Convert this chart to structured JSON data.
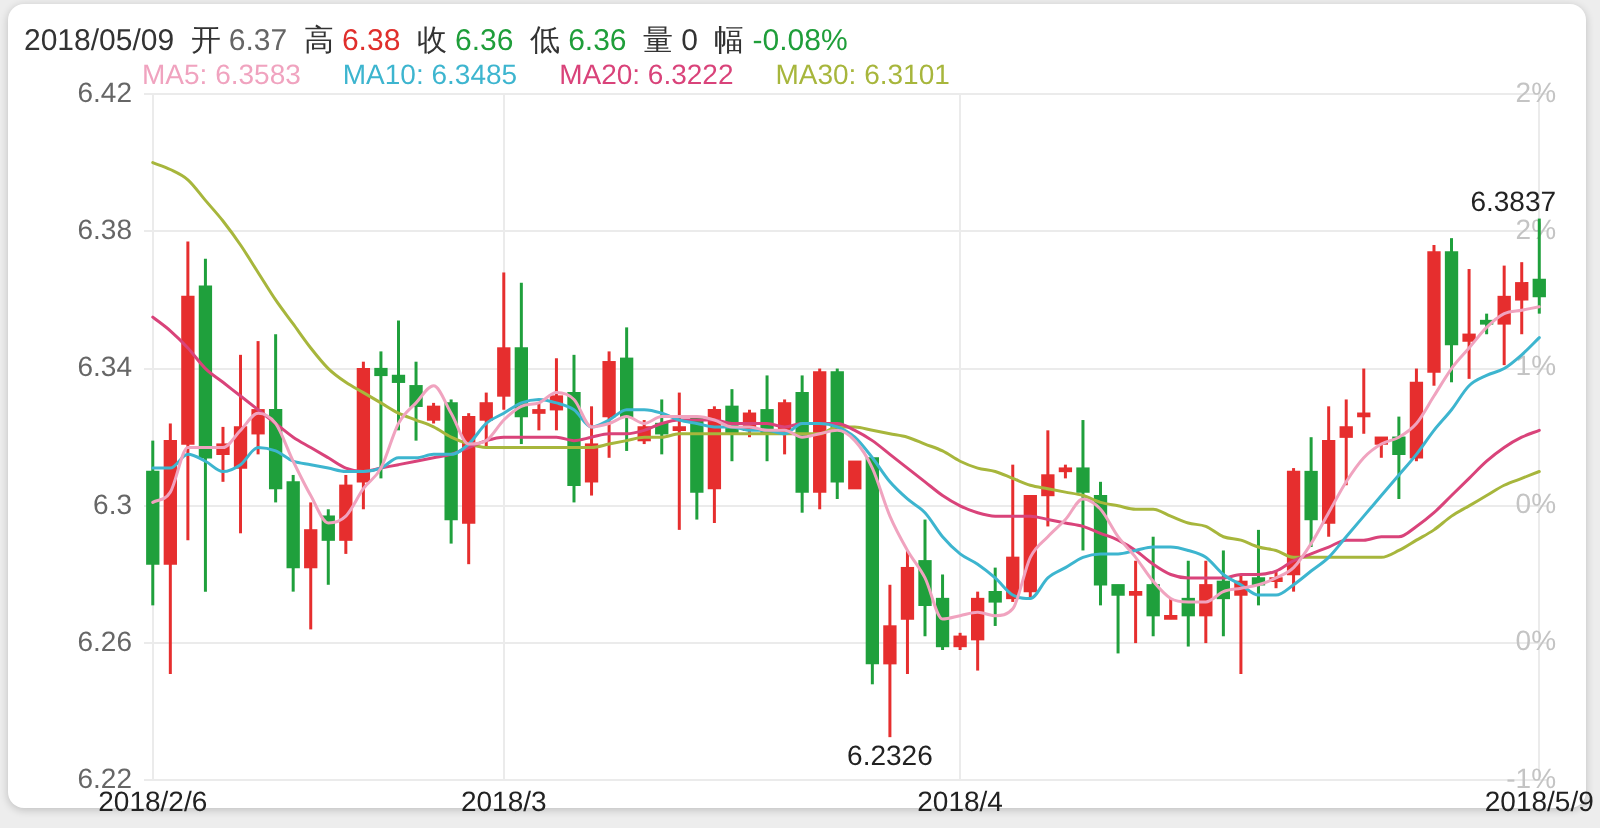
{
  "chart_data": {
    "type": "candlestick",
    "title": "2018/05/09 开 6.37 高 6.38 收 6.36 低 6.36 量 0 幅 -0.08%",
    "categories": [
      "2018/2/6",
      null,
      null,
      null,
      null,
      null,
      null,
      null,
      null,
      null,
      null,
      null,
      null,
      null,
      null,
      null,
      null,
      null,
      null,
      null,
      "2018/3",
      null,
      null,
      null,
      null,
      null,
      null,
      null,
      null,
      null,
      null,
      null,
      null,
      null,
      null,
      null,
      null,
      null,
      null,
      null,
      null,
      null,
      null,
      null,
      null,
      null,
      "2018/4",
      null,
      null,
      null,
      null,
      null,
      null,
      null,
      null,
      null,
      null,
      null,
      null,
      null,
      null,
      null,
      null,
      null,
      null,
      null,
      null,
      null,
      null,
      null,
      null,
      null,
      null,
      null,
      null,
      null,
      null,
      null,
      null,
      "2018/5/9"
    ],
    "ohlc": [
      [
        6.31,
        6.319,
        6.271,
        6.283
      ],
      [
        6.283,
        6.324,
        6.251,
        6.319
      ],
      [
        6.318,
        6.377,
        6.29,
        6.361
      ],
      [
        6.364,
        6.372,
        6.275,
        6.314
      ],
      [
        6.315,
        6.323,
        6.307,
        6.318
      ],
      [
        6.311,
        6.344,
        6.292,
        6.323
      ],
      [
        6.321,
        6.348,
        6.315,
        6.328
      ],
      [
        6.328,
        6.35,
        6.301,
        6.305
      ],
      [
        6.307,
        6.309,
        6.275,
        6.282
      ],
      [
        6.282,
        6.301,
        6.264,
        6.293
      ],
      [
        6.297,
        6.299,
        6.277,
        6.29
      ],
      [
        6.29,
        6.309,
        6.286,
        6.306
      ],
      [
        6.307,
        6.342,
        6.299,
        6.34
      ],
      [
        6.34,
        6.345,
        6.308,
        6.338
      ],
      [
        6.338,
        6.354,
        6.322,
        6.336
      ],
      [
        6.335,
        6.342,
        6.319,
        6.329
      ],
      [
        6.325,
        6.33,
        6.324,
        6.329
      ],
      [
        6.33,
        6.331,
        6.289,
        6.296
      ],
      [
        6.295,
        6.327,
        6.283,
        6.326
      ],
      [
        6.325,
        6.333,
        6.317,
        6.33
      ],
      [
        6.332,
        6.368,
        6.328,
        6.346
      ],
      [
        6.346,
        6.365,
        6.318,
        6.326
      ],
      [
        6.327,
        6.33,
        6.322,
        6.328
      ],
      [
        6.328,
        6.343,
        6.322,
        6.332
      ],
      [
        6.333,
        6.344,
        6.301,
        6.306
      ],
      [
        6.307,
        6.329,
        6.303,
        6.318
      ],
      [
        6.326,
        6.345,
        6.314,
        6.342
      ],
      [
        6.343,
        6.352,
        6.316,
        6.326
      ],
      [
        6.319,
        6.325,
        6.318,
        6.323
      ],
      [
        6.324,
        6.331,
        6.315,
        6.321
      ],
      [
        6.322,
        6.333,
        6.293,
        6.323
      ],
      [
        6.326,
        6.326,
        6.296,
        6.304
      ],
      [
        6.305,
        6.329,
        6.295,
        6.328
      ],
      [
        6.329,
        6.334,
        6.313,
        6.321
      ],
      [
        6.322,
        6.328,
        6.32,
        6.327
      ],
      [
        6.328,
        6.338,
        6.313,
        6.321
      ],
      [
        6.321,
        6.331,
        6.315,
        6.33
      ],
      [
        6.333,
        6.338,
        6.298,
        6.304
      ],
      [
        6.304,
        6.34,
        6.299,
        6.339
      ],
      [
        6.339,
        6.34,
        6.302,
        6.307
      ],
      [
        6.305,
        6.313,
        6.305,
        6.313
      ],
      [
        6.314,
        6.314,
        6.248,
        6.254
      ],
      [
        6.254,
        6.277,
        6.2326,
        6.265
      ],
      [
        6.267,
        6.287,
        6.251,
        6.282
      ],
      [
        6.284,
        6.296,
        6.262,
        6.271
      ],
      [
        6.273,
        6.28,
        6.258,
        6.259
      ],
      [
        6.259,
        6.263,
        6.258,
        6.262
      ],
      [
        6.261,
        6.275,
        6.252,
        6.273
      ],
      [
        6.275,
        6.282,
        6.265,
        6.272
      ],
      [
        6.273,
        6.312,
        6.272,
        6.285
      ],
      [
        6.275,
        6.303,
        6.273,
        6.303
      ],
      [
        6.303,
        6.322,
        6.294,
        6.309
      ],
      [
        6.31,
        6.312,
        6.308,
        6.311
      ],
      [
        6.311,
        6.325,
        6.287,
        6.304
      ],
      [
        6.303,
        6.307,
        6.271,
        6.277
      ],
      [
        6.277,
        6.277,
        6.257,
        6.274
      ],
      [
        6.274,
        6.284,
        6.26,
        6.275
      ],
      [
        6.277,
        6.291,
        6.262,
        6.268
      ],
      [
        6.267,
        6.273,
        6.267,
        6.268
      ],
      [
        6.273,
        6.284,
        6.259,
        6.268
      ],
      [
        6.268,
        6.284,
        6.26,
        6.277
      ],
      [
        6.278,
        6.287,
        6.262,
        6.273
      ],
      [
        6.274,
        6.28,
        6.251,
        6.278
      ],
      [
        6.279,
        6.293,
        6.271,
        6.277
      ],
      [
        6.278,
        6.281,
        6.276,
        6.279
      ],
      [
        6.28,
        6.311,
        6.275,
        6.31
      ],
      [
        6.31,
        6.32,
        6.288,
        6.296
      ],
      [
        6.295,
        6.329,
        6.291,
        6.319
      ],
      [
        6.32,
        6.331,
        6.306,
        6.323
      ],
      [
        6.326,
        6.34,
        6.321,
        6.327
      ],
      [
        6.318,
        6.32,
        6.314,
        6.32
      ],
      [
        6.32,
        6.326,
        6.302,
        6.315
      ],
      [
        6.314,
        6.34,
        6.313,
        6.336
      ],
      [
        6.339,
        6.376,
        6.335,
        6.374
      ],
      [
        6.374,
        6.378,
        6.336,
        6.347
      ],
      [
        6.348,
        6.369,
        6.337,
        6.35
      ],
      [
        6.354,
        6.356,
        6.35,
        6.353
      ],
      [
        6.353,
        6.37,
        6.341,
        6.361
      ],
      [
        6.36,
        6.371,
        6.35,
        6.365
      ],
      [
        6.366,
        6.3837,
        6.356,
        6.361
      ]
    ],
    "colors": [
      "#1fa03c",
      "#e62e2e",
      "#e62e2e",
      "#1fa03c",
      "#e62e2e",
      "#e62e2e",
      "#e62e2e",
      "#1fa03c",
      "#1fa03c",
      "#e62e2e",
      "#1fa03c",
      "#e62e2e",
      "#e62e2e",
      "#1fa03c",
      "#1fa03c",
      "#1fa03c",
      "#e62e2e",
      "#1fa03c",
      "#e62e2e",
      "#e62e2e",
      "#e62e2e",
      "#1fa03c",
      "#e62e2e",
      "#e62e2e",
      "#1fa03c",
      "#e62e2e",
      "#e62e2e",
      "#1fa03c",
      "#e62e2e",
      "#1fa03c",
      "#e62e2e",
      "#1fa03c",
      "#e62e2e",
      "#1fa03c",
      "#e62e2e",
      "#1fa03c",
      "#e62e2e",
      "#1fa03c",
      "#e62e2e",
      "#1fa03c",
      "#e62e2e",
      "#1fa03c",
      "#e62e2e",
      "#e62e2e",
      "#1fa03c",
      "#1fa03c",
      "#e62e2e",
      "#e62e2e",
      "#1fa03c",
      "#e62e2e",
      "#e62e2e",
      "#e62e2e",
      "#e62e2e",
      "#1fa03c",
      "#1fa03c",
      "#1fa03c",
      "#e62e2e",
      "#1fa03c",
      "#e62e2e",
      "#1fa03c",
      "#e62e2e",
      "#1fa03c",
      "#e62e2e",
      "#1fa03c",
      "#e62e2e",
      "#e62e2e",
      "#1fa03c",
      "#e62e2e",
      "#e62e2e",
      "#e62e2e",
      "#e62e2e",
      "#1fa03c",
      "#e62e2e",
      "#e62e2e",
      "#1fa03c",
      "#e62e2e",
      "#1fa03c",
      "#e62e2e",
      "#e62e2e",
      "#1fa03c"
    ],
    "series": [
      {
        "name": "MA5: 6.3583",
        "type": "line",
        "color": "#f0a3bf",
        "values": [
          6.301,
          6.304,
          6.317,
          6.317,
          6.317,
          6.322,
          6.327,
          6.324,
          6.313,
          6.303,
          6.295,
          6.297,
          6.305,
          6.311,
          6.324,
          6.33,
          6.335,
          6.327,
          6.318,
          6.319,
          6.325,
          6.329,
          6.33,
          6.333,
          6.331,
          6.323,
          6.324,
          6.326,
          6.324,
          6.326,
          6.326,
          6.326,
          6.325,
          6.323,
          6.323,
          6.322,
          6.322,
          6.32,
          6.321,
          6.322,
          6.319,
          6.311,
          6.297,
          6.287,
          6.279,
          6.267,
          6.268,
          6.269,
          6.268,
          6.27,
          6.285,
          6.291,
          6.296,
          6.302,
          6.299,
          6.291,
          6.285,
          6.278,
          6.273,
          6.272,
          6.272,
          6.275,
          6.276,
          6.277,
          6.279,
          6.282,
          6.289,
          6.298,
          6.307,
          6.314,
          6.318,
          6.32,
          6.324,
          6.332,
          6.34,
          6.346,
          6.352,
          6.356,
          6.357,
          6.358
        ]
      },
      {
        "name": "MA10: 6.3485",
        "type": "line",
        "color": "#3db5cf",
        "values": [
          6.311,
          6.311,
          6.315,
          6.313,
          6.31,
          6.312,
          6.317,
          6.316,
          6.313,
          6.312,
          6.311,
          6.31,
          6.31,
          6.311,
          6.314,
          6.314,
          6.315,
          6.315,
          6.318,
          6.324,
          6.327,
          6.33,
          6.331,
          6.33,
          6.328,
          6.323,
          6.325,
          6.328,
          6.328,
          6.327,
          6.325,
          6.324,
          6.323,
          6.323,
          6.322,
          6.322,
          6.321,
          6.324,
          6.324,
          6.323,
          6.32,
          6.314,
          6.307,
          6.302,
          6.298,
          6.291,
          6.286,
          6.283,
          6.279,
          6.274,
          6.273,
          6.279,
          6.282,
          6.285,
          6.286,
          6.286,
          6.287,
          6.288,
          6.288,
          6.287,
          6.285,
          6.28,
          6.277,
          6.274,
          6.274,
          6.277,
          6.281,
          6.285,
          6.291,
          6.297,
          6.303,
          6.309,
          6.315,
          6.322,
          6.328,
          6.335,
          6.338,
          6.34,
          6.344,
          6.349
        ]
      },
      {
        "name": "MA20: 6.3222",
        "type": "line",
        "color": "#d9437a",
        "values": [
          6.355,
          6.351,
          6.346,
          6.34,
          6.336,
          6.332,
          6.328,
          6.324,
          6.32,
          6.317,
          6.314,
          6.311,
          6.31,
          6.311,
          6.312,
          6.313,
          6.314,
          6.315,
          6.317,
          6.319,
          6.32,
          6.32,
          6.32,
          6.32,
          6.319,
          6.32,
          6.321,
          6.321,
          6.322,
          6.324,
          6.325,
          6.325,
          6.325,
          6.324,
          6.324,
          6.324,
          6.323,
          6.324,
          6.324,
          6.324,
          6.322,
          6.319,
          6.315,
          6.311,
          6.307,
          6.303,
          6.3,
          6.298,
          6.297,
          6.297,
          6.297,
          6.296,
          6.295,
          6.294,
          6.292,
          6.29,
          6.287,
          6.283,
          6.28,
          6.279,
          6.279,
          6.279,
          6.28,
          6.28,
          6.281,
          6.284,
          6.286,
          6.288,
          6.29,
          6.29,
          6.291,
          6.291,
          6.294,
          6.298,
          6.303,
          6.308,
          6.313,
          6.317,
          6.32,
          6.322
        ]
      },
      {
        "name": "MA30: 6.3101",
        "type": "line",
        "color": "#a7b63c",
        "values": [
          6.4,
          6.398,
          6.395,
          6.389,
          6.383,
          6.376,
          6.368,
          6.36,
          6.353,
          6.346,
          6.34,
          6.336,
          6.333,
          6.33,
          6.327,
          6.325,
          6.323,
          6.32,
          6.318,
          6.317,
          6.317,
          6.317,
          6.317,
          6.317,
          6.317,
          6.317,
          6.318,
          6.319,
          6.32,
          6.32,
          6.321,
          6.321,
          6.321,
          6.321,
          6.321,
          6.321,
          6.321,
          6.321,
          6.321,
          6.323,
          6.323,
          6.322,
          6.321,
          6.32,
          6.318,
          6.316,
          6.313,
          6.311,
          6.31,
          6.308,
          6.306,
          6.305,
          6.304,
          6.303,
          6.301,
          6.3,
          6.299,
          6.299,
          6.297,
          6.295,
          6.294,
          6.291,
          6.29,
          6.288,
          6.287,
          6.285,
          6.285,
          6.285,
          6.285,
          6.285,
          6.285,
          6.287,
          6.29,
          6.293,
          6.297,
          6.3,
          6.303,
          6.306,
          6.308,
          6.31
        ]
      }
    ],
    "ylim": [
      6.22,
      6.42
    ],
    "yticks": [
      6.22,
      6.26,
      6.3,
      6.34,
      6.38,
      6.42
    ],
    "y2lim": [
      -0.96,
      2.23
    ],
    "y2ticks": [
      {
        "value": -0.96,
        "label": "-1%"
      },
      {
        "value": -0.32,
        "label": "0%"
      },
      {
        "value": 0.32,
        "label": "0%"
      },
      {
        "value": 0.96,
        "label": "1%"
      },
      {
        "value": 1.59,
        "label": "2%"
      },
      {
        "value": 2.23,
        "label": "2%"
      }
    ],
    "grid": true,
    "legend": "top left",
    "annotations": [
      {
        "text": "6.3837",
        "x": "2018/5/9",
        "y": 6.3837
      },
      {
        "text": "6.2326",
        "y": 6.2326
      }
    ]
  }
}
